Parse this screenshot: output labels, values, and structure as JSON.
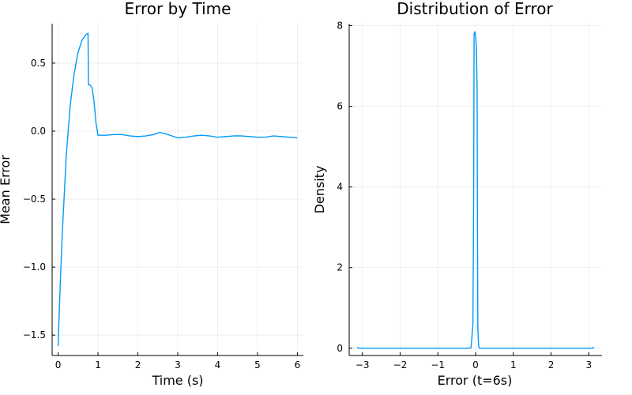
{
  "chart_data": [
    {
      "type": "line",
      "title": "Error by Time",
      "xlabel": "Time (s)",
      "ylabel": "Mean Error",
      "xlim": [
        -0.15,
        6.15
      ],
      "ylim": [
        -1.65,
        0.79
      ],
      "xticks": [
        0,
        1,
        2,
        3,
        4,
        5,
        6
      ],
      "xtick_labels": [
        "0",
        "1",
        "2",
        "3",
        "4",
        "5",
        "6"
      ],
      "yticks": [
        -1.5,
        -1.0,
        -0.5,
        0.0,
        0.5
      ],
      "ytick_labels": [
        "−1.5",
        "−1.0",
        "−0.5",
        "0.0",
        "0.5"
      ],
      "grid": true,
      "color": "#009AFA",
      "series": [
        {
          "x": [
            0.0,
            0.05,
            0.1,
            0.2,
            0.3,
            0.4,
            0.5,
            0.6,
            0.7,
            0.75,
            0.76,
            0.8,
            0.85,
            0.9,
            0.95,
            1.0,
            1.05,
            1.2,
            1.4,
            1.6,
            1.8,
            2.0,
            2.2,
            2.4,
            2.55,
            2.7,
            2.85,
            3.0,
            3.2,
            3.4,
            3.6,
            3.8,
            4.0,
            4.2,
            4.4,
            4.6,
            4.8,
            5.0,
            5.2,
            5.4,
            5.6,
            5.8,
            6.0
          ],
          "y": [
            -1.58,
            -1.15,
            -0.78,
            -0.2,
            0.18,
            0.42,
            0.58,
            0.67,
            0.71,
            0.72,
            0.34,
            0.34,
            0.32,
            0.22,
            0.06,
            -0.03,
            -0.03,
            -0.03,
            -0.025,
            -0.025,
            -0.035,
            -0.04,
            -0.035,
            -0.025,
            -0.01,
            -0.02,
            -0.035,
            -0.05,
            -0.045,
            -0.035,
            -0.03,
            -0.035,
            -0.045,
            -0.04,
            -0.035,
            -0.035,
            -0.04,
            -0.045,
            -0.045,
            -0.035,
            -0.04,
            -0.045,
            -0.05
          ]
        }
      ]
    },
    {
      "type": "line",
      "title": "Distribution of Error",
      "xlabel": "Error (t=6s)",
      "ylabel": "Density",
      "xlim": [
        -3.35,
        3.35
      ],
      "ylim": [
        -0.18,
        8.05
      ],
      "xticks": [
        -3,
        -2,
        -1,
        0,
        1,
        2,
        3
      ],
      "xtick_labels": [
        "−3",
        "−2",
        "−1",
        "0",
        "1",
        "2",
        "3"
      ],
      "yticks": [
        0,
        2,
        4,
        6,
        8
      ],
      "ytick_labels": [
        "0",
        "2",
        "4",
        "6",
        "8"
      ],
      "grid": true,
      "color": "#009AFA",
      "series": [
        {
          "x": [
            -3.14,
            -3.1,
            -3.0,
            -2.0,
            -1.0,
            -0.2,
            -0.12,
            -0.07,
            -0.05,
            -0.04,
            -0.02,
            0.0,
            0.02,
            0.04,
            0.05,
            0.06,
            0.08,
            0.1,
            0.2,
            1.0,
            2.0,
            3.0,
            3.1,
            3.14
          ],
          "y": [
            0.03,
            0.0,
            0.0,
            0.0,
            0.0,
            0.0,
            0.01,
            0.6,
            4.0,
            7.8,
            7.85,
            7.75,
            7.5,
            6.5,
            3.0,
            0.5,
            0.05,
            0.0,
            0.0,
            0.0,
            0.0,
            0.0,
            0.0,
            0.03
          ]
        }
      ]
    }
  ]
}
